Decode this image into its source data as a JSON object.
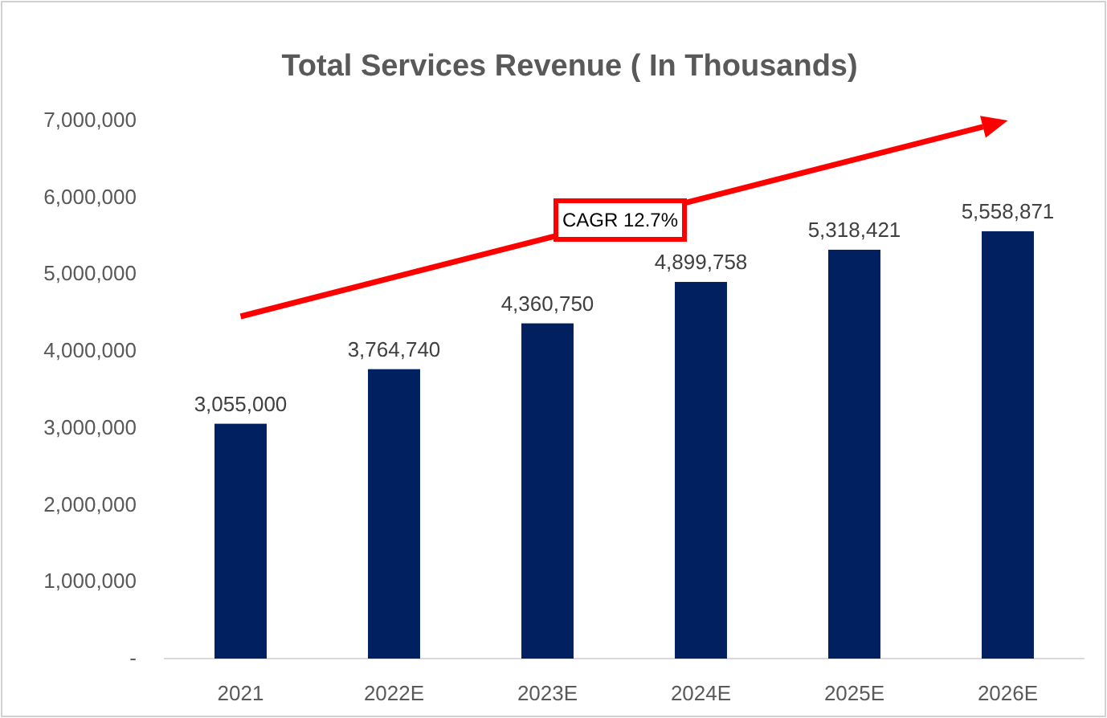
{
  "chart_data": {
    "type": "bar",
    "title": "Total Services Revenue ( In Thousands)",
    "categories": [
      "2021",
      "2022E",
      "2023E",
      "2024E",
      "2025E",
      "2026E"
    ],
    "values": [
      3055000,
      3764740,
      4360750,
      4899758,
      5318421,
      5558871
    ],
    "value_labels": [
      "3,055,000",
      "3,764,740",
      "4,360,750",
      "4,899,758",
      "5,318,421",
      "5,558,871"
    ],
    "color": "#002060",
    "ylim": [
      0,
      7000000
    ],
    "yticks": [
      {
        "value": 0,
        "label": "-"
      },
      {
        "value": 1000000,
        "label": "1,000,000"
      },
      {
        "value": 2000000,
        "label": "2,000,000"
      },
      {
        "value": 3000000,
        "label": "3,000,000"
      },
      {
        "value": 4000000,
        "label": "4,000,000"
      },
      {
        "value": 5000000,
        "label": "5,000,000"
      },
      {
        "value": 6000000,
        "label": "6,000,000"
      },
      {
        "value": 7000000,
        "label": "7,000,000"
      }
    ],
    "grid": false,
    "annotations": [
      "CAGR 12.7%"
    ]
  }
}
